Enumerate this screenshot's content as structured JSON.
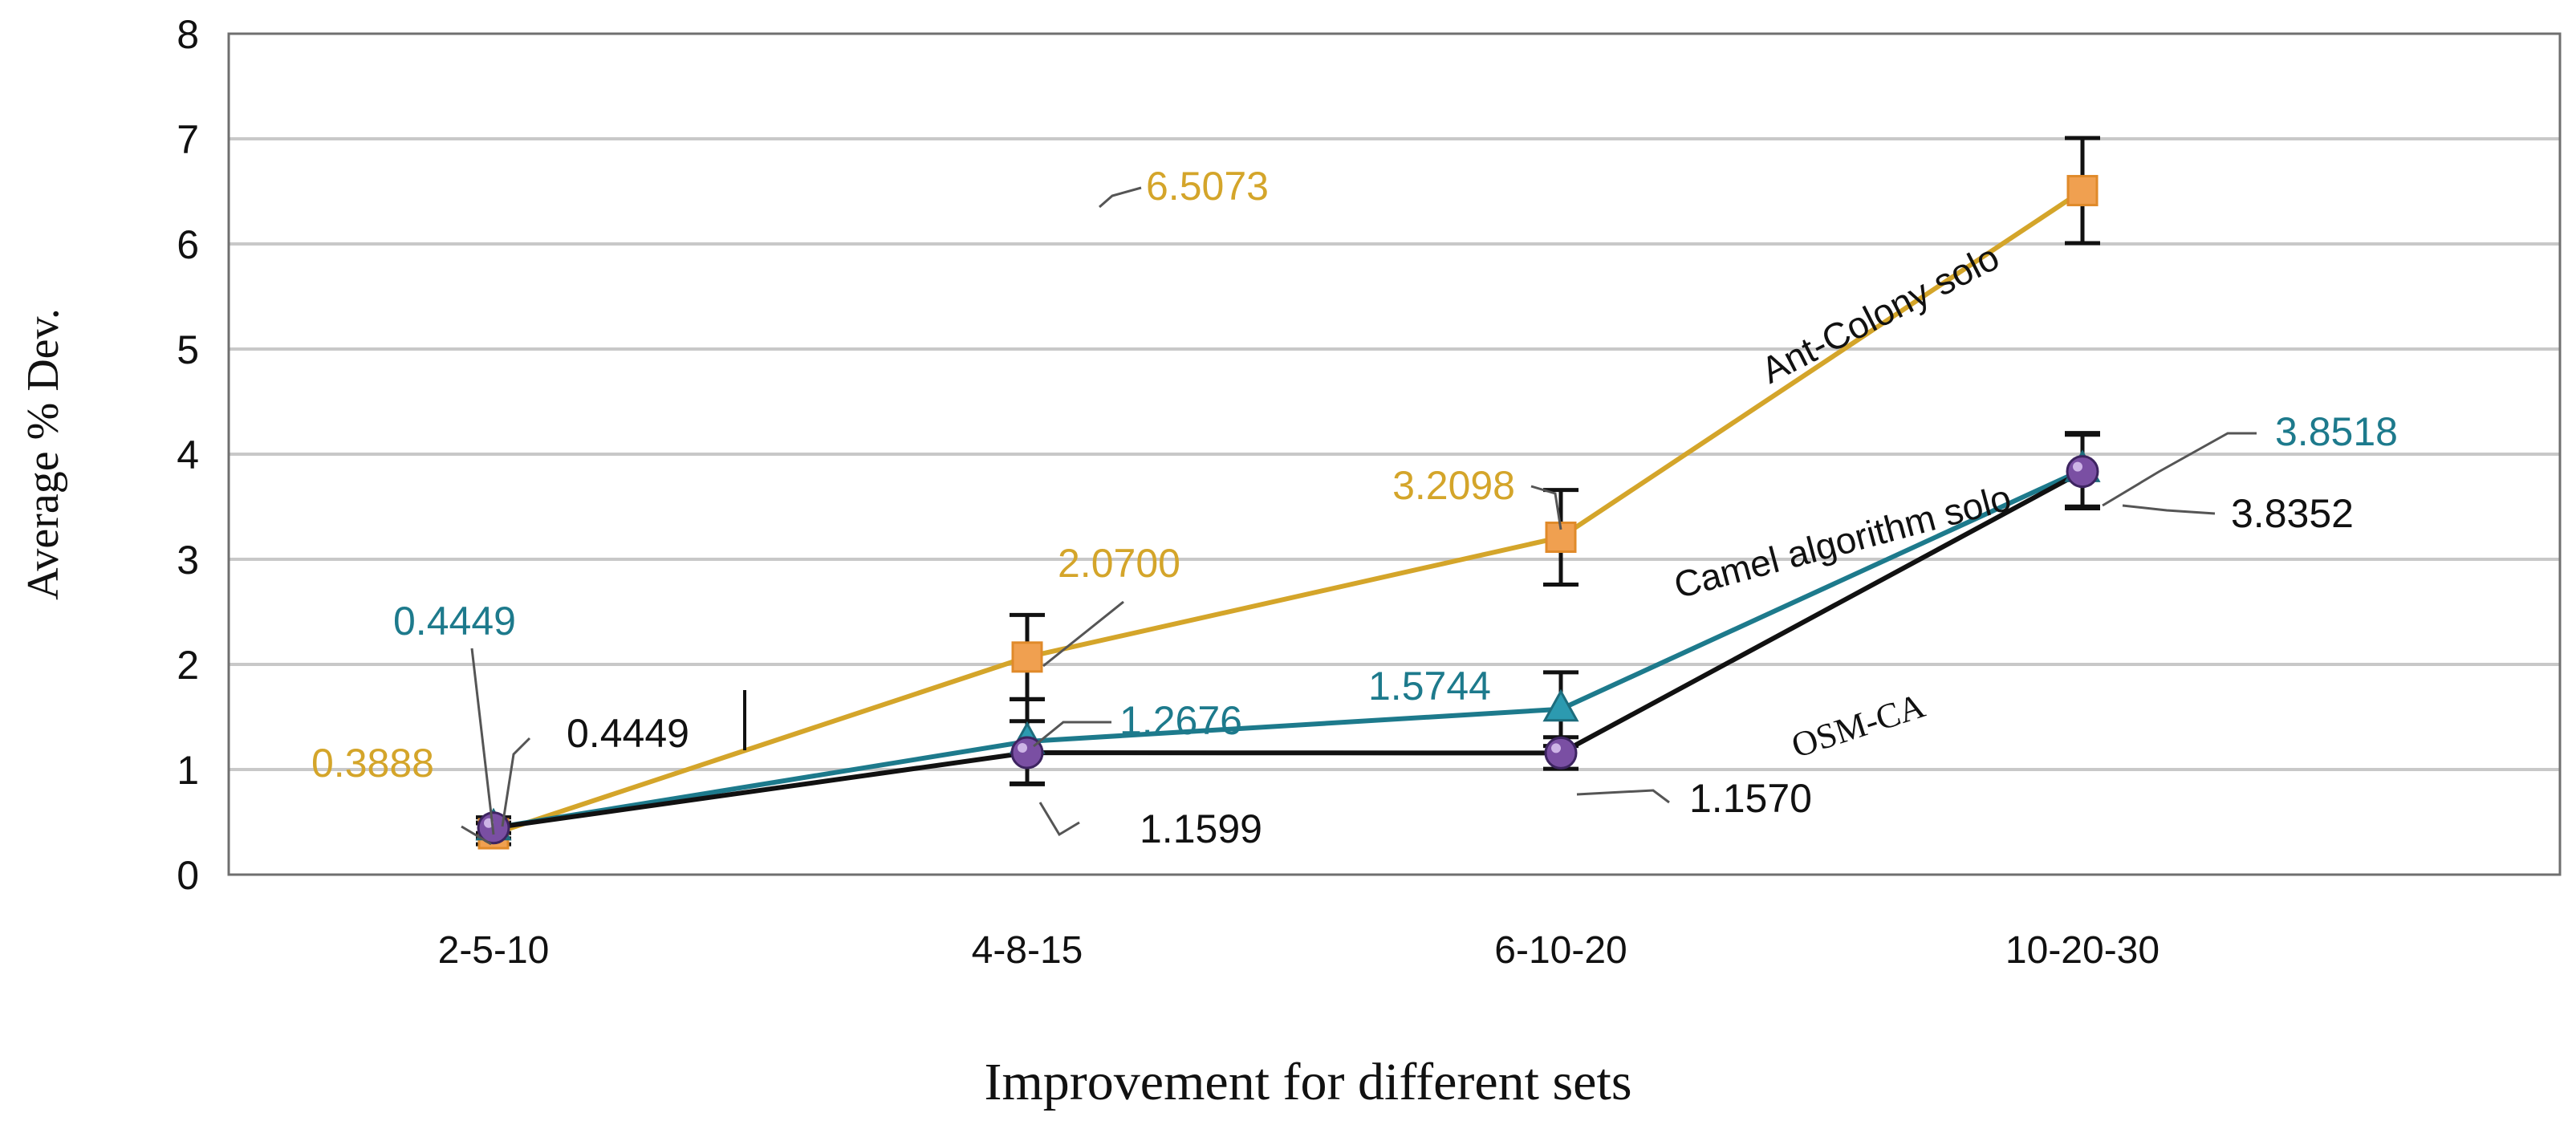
{
  "chart_data": {
    "type": "line",
    "title": "",
    "xlabel": "Improvement for different sets",
    "ylabel": "Average % Dev.",
    "ylim": [
      0,
      8
    ],
    "yticks": [
      0,
      1,
      2,
      3,
      4,
      5,
      6,
      7,
      8
    ],
    "grid": true,
    "categories": [
      "2-5-10",
      "4-8-15",
      "6-10-20",
      "10-20-30"
    ],
    "series": [
      {
        "name": "Ant-Colony solo",
        "color": "#d4a52a",
        "marker": "square",
        "marker_color": "#f0a050",
        "values": [
          0.3888,
          2.07,
          3.2098,
          6.5073
        ],
        "labels": [
          "0.3888",
          "2.0700",
          "3.2098",
          "6.5073"
        ],
        "error": [
          0.1,
          0.4,
          0.45,
          0.5
        ]
      },
      {
        "name": "Camel algorithm solo",
        "color": "#1d7a8c",
        "marker": "triangle",
        "marker_color": "#2c9ab0",
        "values": [
          0.4449,
          1.2676,
          1.5744,
          3.8518
        ],
        "labels": [
          "0.4449",
          "1.2676",
          "1.5744",
          "3.8518"
        ],
        "error": [
          0.1,
          0.4,
          0.35,
          0.35
        ]
      },
      {
        "name": "OSM-CA",
        "color": "#111111",
        "marker": "circle",
        "marker_color": "#7a4fa3",
        "values": [
          0.4449,
          1.1599,
          1.157,
          3.8352
        ],
        "labels": [
          "0.4449",
          "1.1599",
          "1.1570",
          "3.8352"
        ],
        "error": [
          0.05,
          0.3,
          0.15,
          0.35
        ]
      }
    ]
  }
}
